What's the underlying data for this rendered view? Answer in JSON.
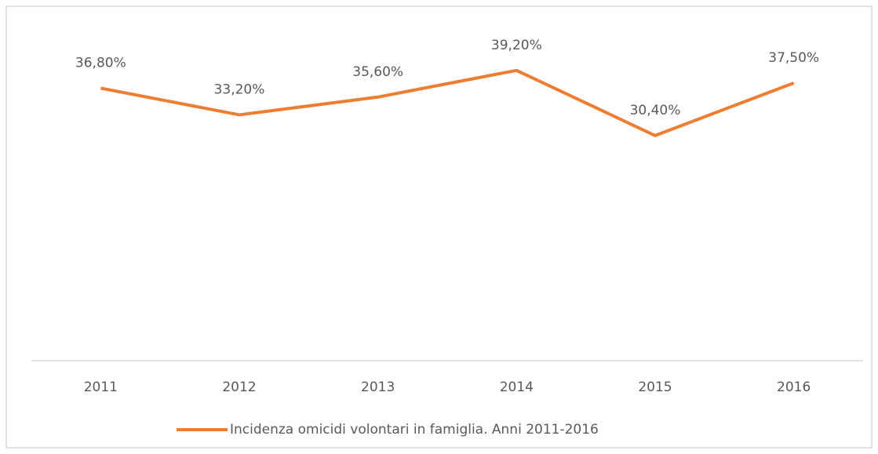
{
  "chart_data": {
    "type": "line",
    "categories": [
      "2011",
      "2012",
      "2013",
      "2014",
      "2015",
      "2016"
    ],
    "series": [
      {
        "name": "Incidenza omicidi volontari in famiglia. Anni 2011-2016",
        "color": "#ed7d31",
        "values": [
          36.8,
          33.2,
          35.6,
          39.2,
          30.4,
          37.5
        ],
        "value_labels": [
          "36,80%",
          "33,20%",
          "35,60%",
          "39,20%",
          "30,40%",
          "37,50%"
        ]
      }
    ],
    "ylim": [
      0,
      45
    ],
    "grid": false,
    "legend": "bottom"
  }
}
